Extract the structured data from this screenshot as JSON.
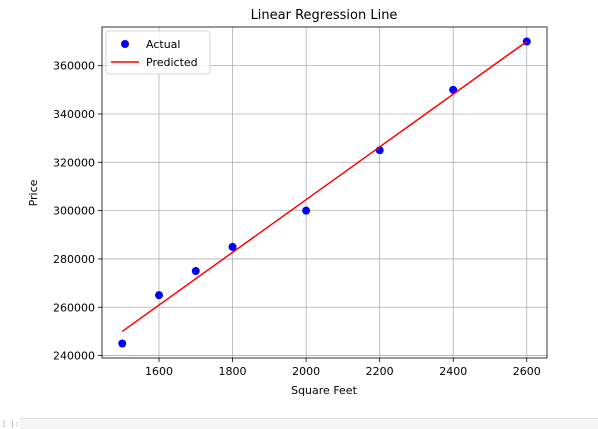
{
  "chart_data": {
    "type": "scatter",
    "title": "Linear Regression Line",
    "xlabel": "Square Feet",
    "ylabel": "Price",
    "xlim": [
      1445,
      2655
    ],
    "ylim": [
      239000,
      376000
    ],
    "xticks": [
      1600,
      1800,
      2000,
      2200,
      2400,
      2600
    ],
    "xtick_labels": [
      "1600",
      "1800",
      "2000",
      "2200",
      "2400",
      "2600"
    ],
    "yticks": [
      240000,
      260000,
      280000,
      300000,
      320000,
      340000,
      360000
    ],
    "ytick_labels": [
      "240000",
      "260000",
      "280000",
      "300000",
      "320000",
      "340000",
      "360000"
    ],
    "grid": true,
    "legend_position": "upper-left",
    "series": [
      {
        "name": "Actual",
        "kind": "scatter",
        "color": "#0000ff",
        "x": [
          1500,
          1600,
          1700,
          1800,
          2000,
          2200,
          2400,
          2600
        ],
        "y": [
          245000,
          265000,
          275000,
          285000,
          300000,
          325000,
          350000,
          370000
        ]
      },
      {
        "name": "Predicted",
        "kind": "line",
        "color": "#ff0000",
        "x": [
          1500,
          2600
        ],
        "y": [
          250000,
          370000
        ]
      }
    ]
  },
  "cell": {
    "prompt_marker": "[ ]:"
  }
}
